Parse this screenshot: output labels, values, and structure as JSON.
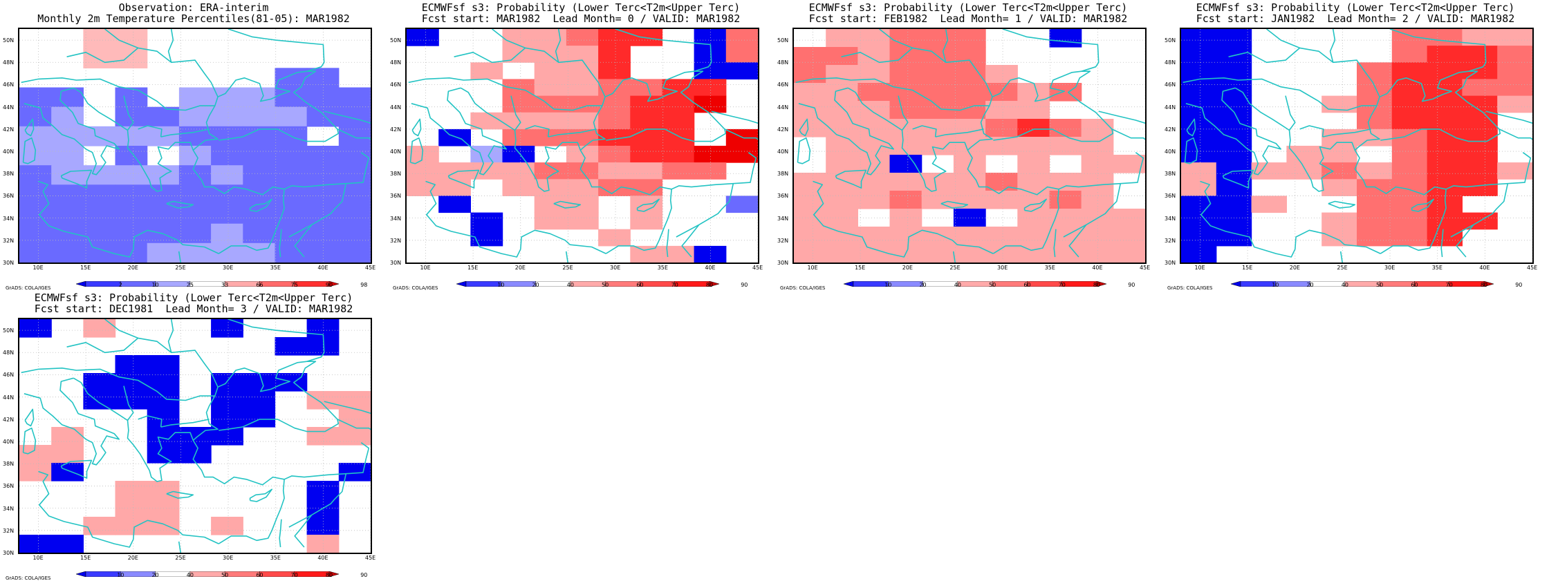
{
  "credit": "GrADS: COLA/IGES",
  "map_domain": {
    "lon_range": [
      8,
      45
    ],
    "lat_range": [
      30,
      51
    ],
    "lon_ticks": [
      "10E",
      "15E",
      "20E",
      "25E",
      "30E",
      "35E",
      "40E",
      "45E"
    ],
    "lat_ticks": [
      "50N",
      "48N",
      "46N",
      "44N",
      "42N",
      "40N",
      "38N",
      "36N",
      "34N",
      "32N",
      "30N"
    ],
    "coastline_color": "#22c3c3",
    "grid_line_color": "#bbbbbb"
  },
  "colorbars": {
    "observation": {
      "labels": [
        "2",
        "10",
        "25",
        "33",
        "66",
        "75",
        "90",
        "98"
      ],
      "colors": [
        "#0000ee",
        "#3a3aff",
        "#6a6aff",
        "#a8a8ff",
        "#ffffff",
        "#ffaaaa",
        "#ff6a6a",
        "#ff3030",
        "#dd0000"
      ]
    },
    "probability": {
      "labels": [
        "10",
        "20",
        "40",
        "50",
        "60",
        "70",
        "80",
        "90"
      ],
      "colors": [
        "#0000ee",
        "#3a3aff",
        "#8a8aff",
        "#ffffff",
        "#ffaaaa",
        "#ff7a7a",
        "#ff4a4a",
        "#ff1a1a",
        "#cc0000"
      ]
    }
  },
  "panels": [
    {
      "title_line1": "Observation: ERA-interim",
      "title_line2": "Monthly 2m Temperature Percentiles(81-05): MAR1982",
      "colorbar": "observation",
      "grid_rows_north_to_south": [
        "..44.......",
        "..44.......",
        "........BB.",
        "BB.B.CCCBBB",
        "BC.BBCCCCBB",
        "CCCCCBBBB.B",
        "CC.B.CBBBBB",
        "BCCCCBCBBBB",
        "BBBBBBBBBBB",
        "BBBBBBBBBBB",
        "BBBBBBCBBBB",
        "BBBBCCCCBBB"
      ]
    },
    {
      "title_line1": "ECMWFsf s3: Probability (Lower Terc<T2m<Upper Terc)",
      "title_line2": "Fcst start: MAR1982  Lead Month= 0 / VALID: MAR1982",
      "colorbar": "probability",
      "grid_rows_north_to_south": [
        "A..55677.A6",
        "...5557..A6",
        "..5.557..AA",
        "...6556677.",
        "...6666778.",
        "..5555677..",
        ".A.666777.8",
        "5.CA.567788",
        "5555665566.",
        "55.55566...",
        ".A..55.5..B",
        "..A.55.5...",
        "..A...5....",
        ".......55A."
      ]
    },
    {
      "title_line1": "ECMWFsf s3: Probability (Lower Terc<T2m<Upper Terc)",
      "title_line2": "Fcst start: FEB1982  Lead Month= 1 / VALID: MAR1982",
      "colorbar": "probability",
      "grid_rows_north_to_south": [
        ".55666..A..",
        "665666.....",
        "6556665....",
        "556666656..",
        "55566655...",
        "5555556765.",
        ".555555555.",
        ".55A.5.5.55",
        "5555556555.",
        "5556555565.",
        "55.5.A.5555",
        "55555555555",
        "55555555555"
      ]
    },
    {
      "title_line1": "ECMWFsf s3: Probability (Lower Terc<T2m<Upper Terc)",
      "title_line2": "Fcst start: JAN1982  Lead Month= 2 / VALID: MAR1982",
      "colorbar": "probability",
      "grid_rows_north_to_south": [
        "AA....6655",
        "AA....6776",
        "AA...67776",
        "AA...67766",
        "AA..567775",
        "AA...6777.",
        "AA..55677.",
        "AA.55.677.",
        "5A55656775",
        "5A..56677.",
        "AA5..667..",
        "AA..56677.",
        "AA..5667..",
        "A........."
      ]
    },
    {
      "title_line1": "ECMWFsf s3: Probability (Lower Terc<T2m<Upper Terc)",
      "title_line2": "Fcst start: DEC1981  Lead Month= 3 / VALID: MAR1982",
      "colorbar": "probability",
      "grid_rows_north_to_south": [
        "A.5...A..A.",
        "........AA.",
        "...AA......",
        "..AAA.AAA..",
        "..AAA.AA.55",
        "....A.AA..5",
        ".5..AAA..55",
        "55..AA.....",
        "5A........A",
        "...55....A.",
        "...55....A.",
        "..555.5..A.",
        "AA.......5."
      ]
    }
  ]
}
